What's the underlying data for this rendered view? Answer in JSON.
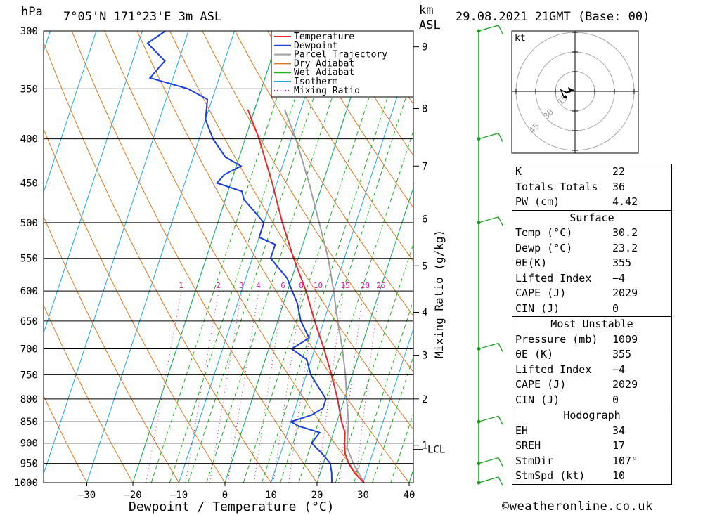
{
  "header": {
    "location": "7°05'N  171°23'E  3m  ASL",
    "datetime": "29.08.2021  21GMT  (Base: 00)",
    "left_unit": "hPa",
    "right_unit_1": "km",
    "right_unit_2": "ASL",
    "hodo_unit": "kt"
  },
  "chart_data": {
    "type": "skew-t log-p",
    "xlabel": "Dewpoint / Temperature (°C)",
    "right_axis_label": "Mixing Ratio (g/kg)",
    "x_ticks": [
      "−30",
      "−20",
      "−10",
      "0",
      "10",
      "20",
      "30",
      "40"
    ],
    "pressure_levels": [
      300,
      350,
      400,
      450,
      500,
      550,
      600,
      650,
      700,
      750,
      800,
      850,
      900,
      950,
      1000
    ],
    "km_ticks": [
      {
        "label": "9",
        "p": 313
      },
      {
        "label": "8",
        "p": 369
      },
      {
        "label": "7",
        "p": 430
      },
      {
        "label": "6",
        "p": 495
      },
      {
        "label": "5",
        "p": 561
      },
      {
        "label": "4",
        "p": 635
      },
      {
        "label": "3",
        "p": 712
      },
      {
        "label": "2",
        "p": 800
      },
      {
        "label": "1",
        "p": 905
      }
    ],
    "lcl_label": "LCL",
    "lcl_p": 910,
    "mixing_ratio_labels": [
      "1",
      "2",
      "3",
      "4",
      "6",
      "8",
      "10",
      "15",
      "20",
      "25"
    ],
    "legend": [
      "Temperature",
      "Dewpoint",
      "Parcel Trajectory",
      "Dry Adiabat",
      "Wet Adiabat",
      "Isotherm",
      "Mixing Ratio"
    ],
    "colors": {
      "temperature": "#e8282d",
      "dewpoint": "#1a3fe0",
      "parcel": "#a0a0a0",
      "dry_adiabat": "#e07820",
      "wet_adiabat": "#20b020",
      "isotherm": "#1ea7e8",
      "mixing_ratio": "#cc2299",
      "wind_barb": "#1a9e20"
    },
    "temperature": [
      {
        "p": 1000,
        "t": 30.2
      },
      {
        "p": 975,
        "t": 27.5
      },
      {
        "p": 950,
        "t": 25.5
      },
      {
        "p": 925,
        "t": 24.0
      },
      {
        "p": 900,
        "t": 23.2
      },
      {
        "p": 875,
        "t": 22.5
      },
      {
        "p": 850,
        "t": 21.0
      },
      {
        "p": 800,
        "t": 18.5
      },
      {
        "p": 750,
        "t": 15.5
      },
      {
        "p": 700,
        "t": 12.0
      },
      {
        "p": 650,
        "t": 8.0
      },
      {
        "p": 600,
        "t": 4.0
      },
      {
        "p": 550,
        "t": -1.0
      },
      {
        "p": 500,
        "t": -6.0
      },
      {
        "p": 450,
        "t": -11.0
      },
      {
        "p": 400,
        "t": -17.0
      },
      {
        "p": 370,
        "t": -21.5
      }
    ],
    "dewpoint": [
      {
        "p": 1000,
        "t": 23.2
      },
      {
        "p": 975,
        "t": 22.5
      },
      {
        "p": 950,
        "t": 21.5
      },
      {
        "p": 925,
        "t": 19.0
      },
      {
        "p": 900,
        "t": 16.0
      },
      {
        "p": 875,
        "t": 17.0
      },
      {
        "p": 860,
        "t": 12.0
      },
      {
        "p": 850,
        "t": 10.0
      },
      {
        "p": 835,
        "t": 14.0
      },
      {
        "p": 820,
        "t": 16.0
      },
      {
        "p": 800,
        "t": 16.0
      },
      {
        "p": 770,
        "t": 13.0
      },
      {
        "p": 750,
        "t": 11.0
      },
      {
        "p": 720,
        "t": 9.0
      },
      {
        "p": 700,
        "t": 5.0
      },
      {
        "p": 680,
        "t": 8.0
      },
      {
        "p": 650,
        "t": 5.0
      },
      {
        "p": 620,
        "t": 3.0
      },
      {
        "p": 600,
        "t": 1.0
      },
      {
        "p": 580,
        "t": -1.0
      },
      {
        "p": 550,
        "t": -6.0
      },
      {
        "p": 530,
        "t": -6.0
      },
      {
        "p": 520,
        "t": -10.0
      },
      {
        "p": 500,
        "t": -10.0
      },
      {
        "p": 470,
        "t": -16.0
      },
      {
        "p": 460,
        "t": -17.0
      },
      {
        "p": 450,
        "t": -23.0
      },
      {
        "p": 440,
        "t": -22.0
      },
      {
        "p": 430,
        "t": -19.0
      },
      {
        "p": 420,
        "t": -23.0
      },
      {
        "p": 400,
        "t": -27.0
      },
      {
        "p": 380,
        "t": -30.0
      },
      {
        "p": 360,
        "t": -31.0
      },
      {
        "p": 350,
        "t": -36.0
      },
      {
        "p": 340,
        "t": -45.0
      },
      {
        "p": 325,
        "t": -43.0
      },
      {
        "p": 310,
        "t": -48.0
      },
      {
        "p": 300,
        "t": -45.0
      }
    ],
    "parcel": [
      {
        "p": 1000,
        "t": 30.2
      },
      {
        "p": 950,
        "t": 26.5
      },
      {
        "p": 910,
        "t": 24.0
      },
      {
        "p": 850,
        "t": 22.5
      },
      {
        "p": 800,
        "t": 20.5
      },
      {
        "p": 750,
        "t": 18.5
      },
      {
        "p": 700,
        "t": 16.0
      },
      {
        "p": 650,
        "t": 13.0
      },
      {
        "p": 600,
        "t": 10.0
      },
      {
        "p": 550,
        "t": 6.5
      },
      {
        "p": 500,
        "t": 2.0
      },
      {
        "p": 450,
        "t": -3.0
      },
      {
        "p": 400,
        "t": -9.0
      },
      {
        "p": 370,
        "t": -13.5
      }
    ],
    "wind_levels_hpa": [
      1000,
      950,
      850,
      700,
      500,
      400,
      300
    ]
  },
  "indices": {
    "top": [
      {
        "label": "K",
        "value": "22"
      },
      {
        "label": "Totals Totals",
        "value": "36"
      },
      {
        "label": "PW (cm)",
        "value": "4.42"
      }
    ],
    "surface": {
      "title": "Surface",
      "rows": [
        {
          "label": "Temp (°C)",
          "value": "30.2"
        },
        {
          "label": "Dewp (°C)",
          "value": "23.2"
        },
        {
          "label": "θE(K)",
          "value": "355"
        },
        {
          "label": "Lifted Index",
          "value": "−4"
        },
        {
          "label": "CAPE (J)",
          "value": "2029"
        },
        {
          "label": "CIN (J)",
          "value": "0"
        }
      ]
    },
    "most_unstable": {
      "title": "Most Unstable",
      "rows": [
        {
          "label": "Pressure (mb)",
          "value": "1009"
        },
        {
          "label": "θE (K)",
          "value": "355"
        },
        {
          "label": "Lifted Index",
          "value": "−4"
        },
        {
          "label": "CAPE (J)",
          "value": "2029"
        },
        {
          "label": "CIN (J)",
          "value": "0"
        }
      ]
    },
    "hodograph": {
      "title": "Hodograph",
      "rows": [
        {
          "label": "EH",
          "value": "34"
        },
        {
          "label": "SREH",
          "value": "17"
        },
        {
          "label": "StmDir",
          "value": "107°"
        },
        {
          "label": "StmSpd (kt)",
          "value": "10"
        }
      ]
    }
  },
  "hodograph_rings": [
    "15",
    "30",
    "45"
  ],
  "credit": "©weatheronline.co.uk"
}
